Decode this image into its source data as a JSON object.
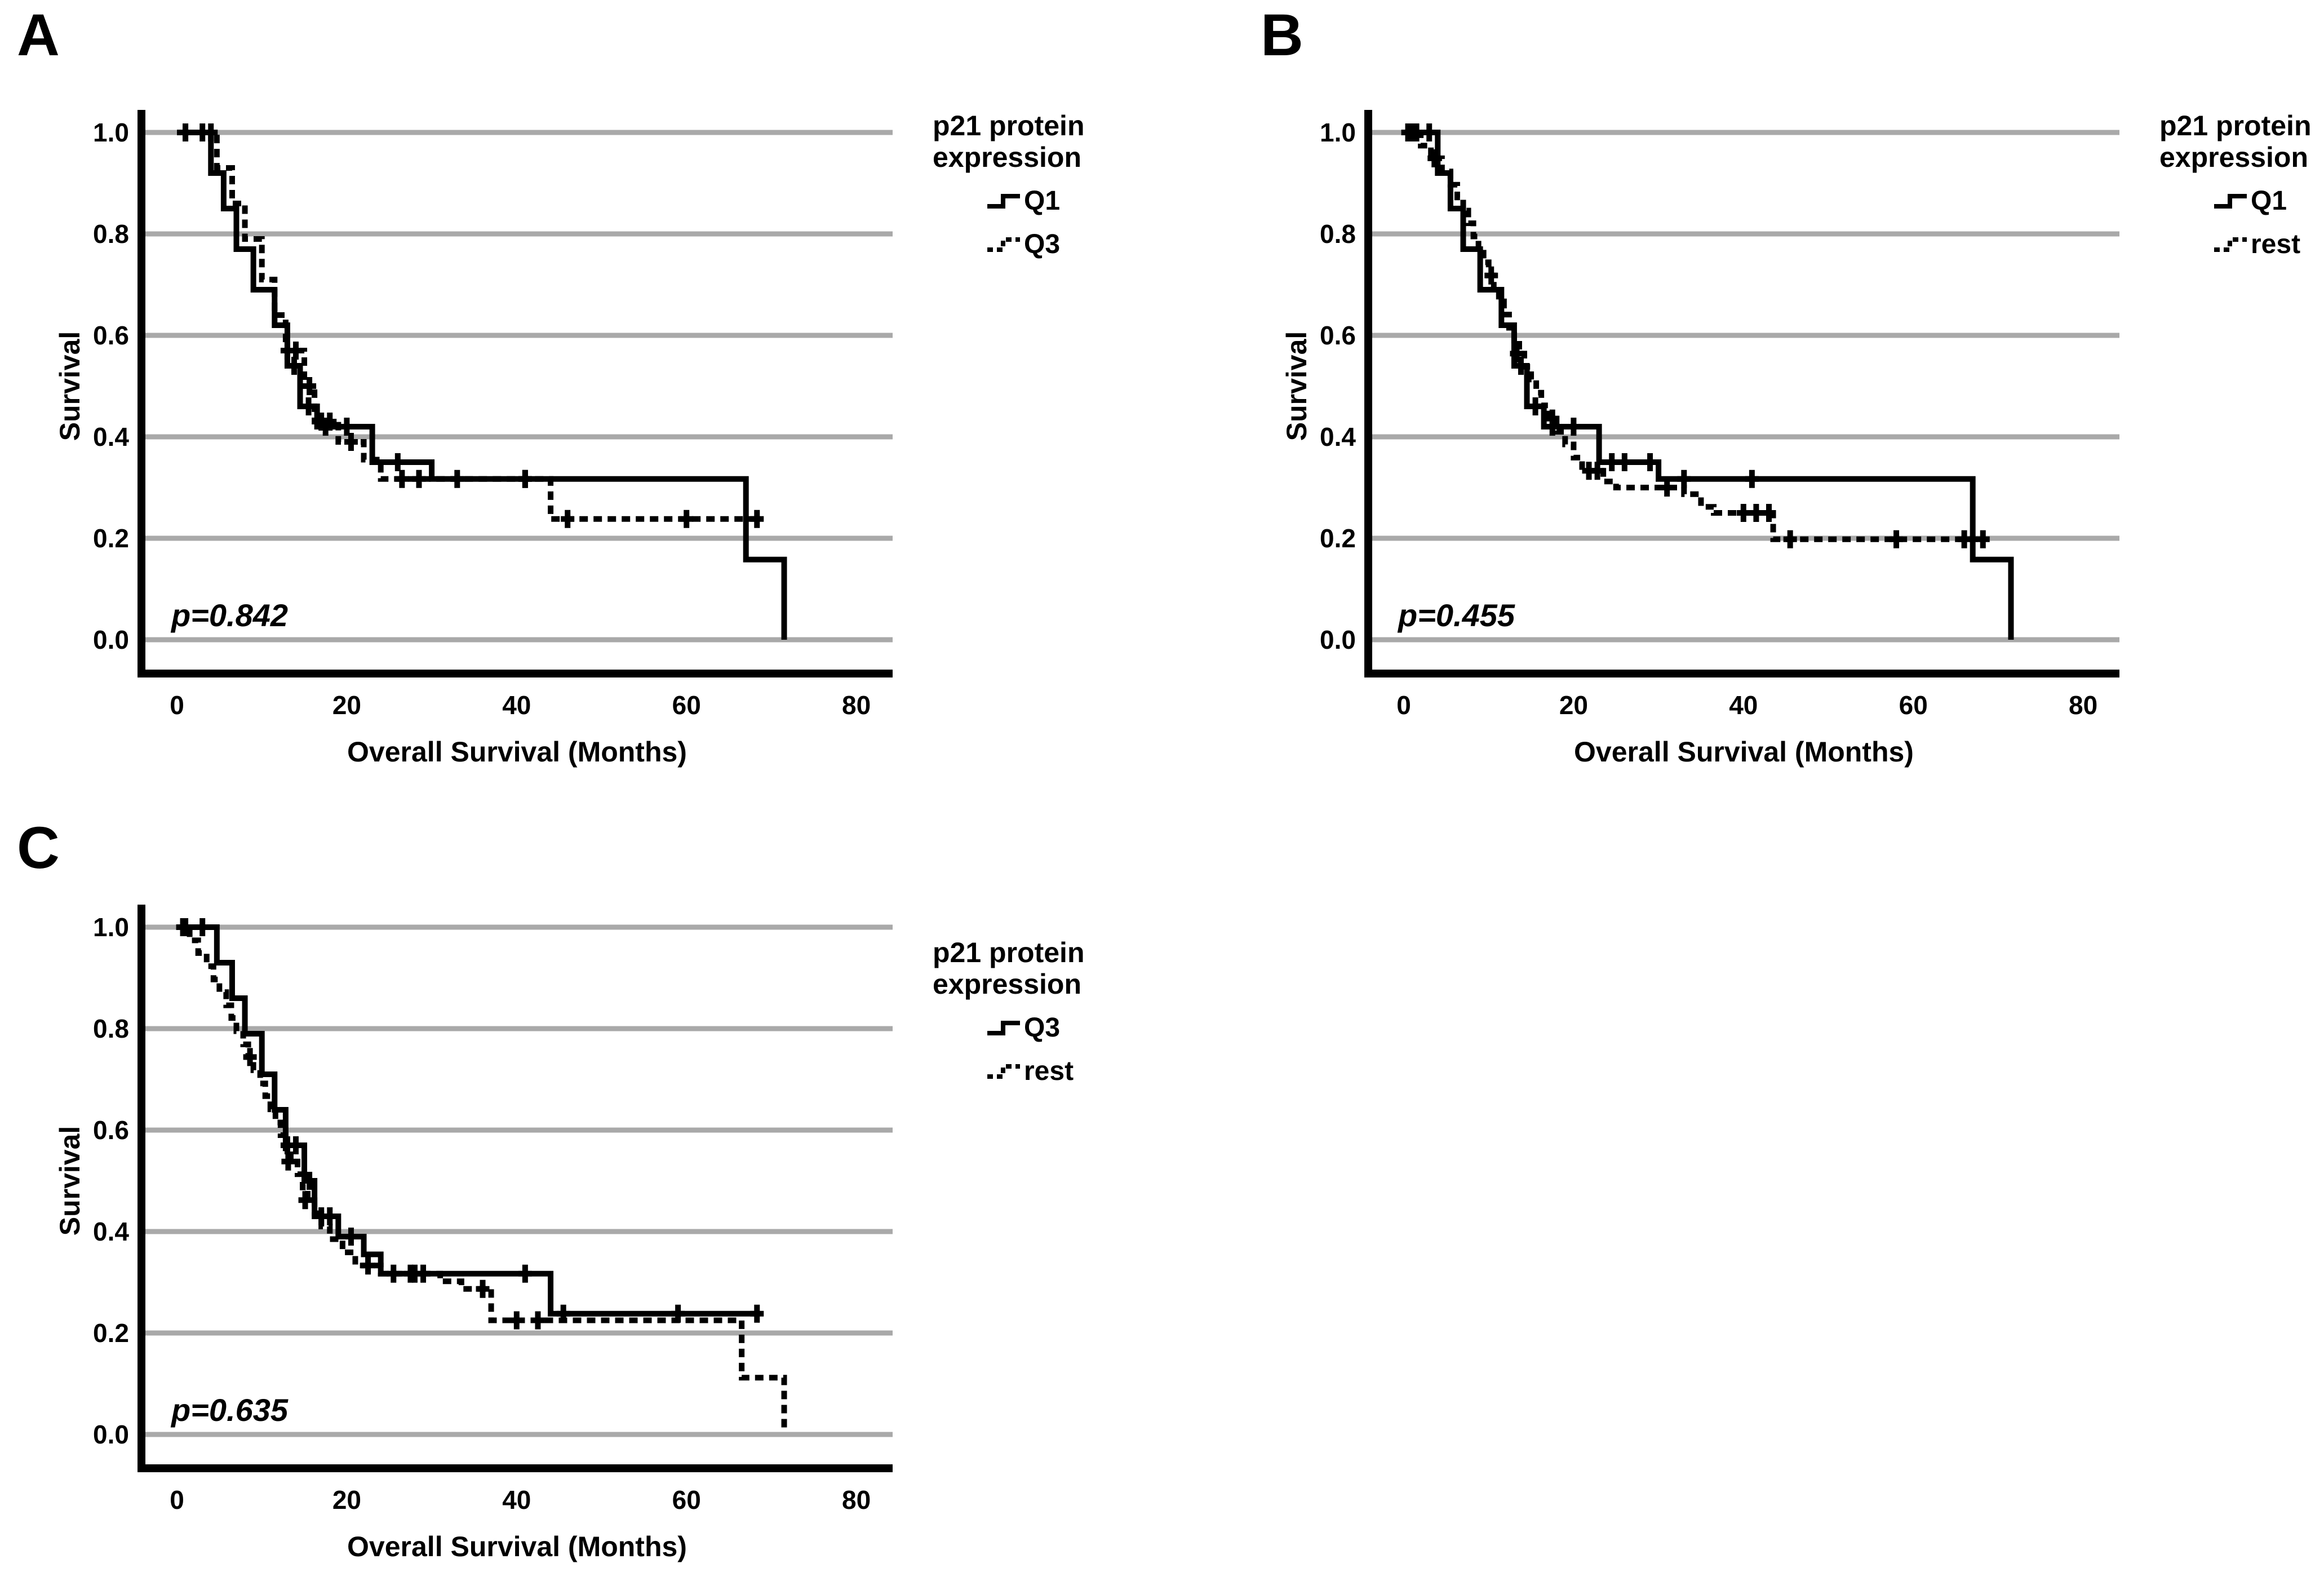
{
  "page": {
    "background": "#ffffff",
    "curve_color": "#000000",
    "grid_color": "#a9a9a9"
  },
  "chart_data": [
    {
      "type": "line",
      "subtype": "kaplan-meier-step",
      "panel_label": "A",
      "legend_title": "p21 protein expression",
      "legend_position": "right",
      "annotation": "p=0.842",
      "xlabel": "Overall Survival (Months)",
      "ylabel": "Survival",
      "xlim": [
        0,
        85
      ],
      "ylim": [
        0.0,
        1.0
      ],
      "xticks": [
        0,
        20,
        40,
        60,
        80
      ],
      "ytick_labels": [
        "1.0",
        "0.8",
        "0.6",
        "0.4",
        "0.2",
        "0.0"
      ],
      "grid": "horizontal-only",
      "series": [
        {
          "name": "Q1",
          "line": "solid",
          "start": [
            0,
            1.0
          ],
          "drops": [
            [
              4,
              0.92
            ],
            [
              5.5,
              0.85
            ],
            [
              7,
              0.77
            ],
            [
              9,
              0.69
            ],
            [
              11.5,
              0.62
            ],
            [
              13,
              0.54
            ],
            [
              14.5,
              0.46
            ],
            [
              16.5,
              0.42
            ],
            [
              23,
              0.35
            ],
            [
              30,
              0.317
            ],
            [
              67,
              0.158
            ],
            [
              71.5,
              0.0
            ]
          ],
          "end_time": 71.5,
          "censors": [
            [
              1,
              1.0
            ],
            [
              3,
              1.0
            ],
            [
              13.8,
              0.54
            ],
            [
              15.5,
              0.46
            ],
            [
              17.5,
              0.42
            ],
            [
              20,
              0.42
            ],
            [
              26,
              0.35
            ],
            [
              28.5,
              0.317
            ],
            [
              33,
              0.317
            ],
            [
              41,
              0.317
            ]
          ]
        },
        {
          "name": "Q3",
          "line": "dashed",
          "start": [
            0,
            1.0
          ],
          "drops": [
            [
              4.7,
              0.93
            ],
            [
              6.5,
              0.86
            ],
            [
              8,
              0.79
            ],
            [
              10,
              0.71
            ],
            [
              11.5,
              0.64
            ],
            [
              12.8,
              0.57
            ],
            [
              15,
              0.5
            ],
            [
              16.2,
              0.43
            ],
            [
              19,
              0.39
            ],
            [
              22,
              0.355
            ],
            [
              24,
              0.317
            ],
            [
              44,
              0.238
            ]
          ],
          "end_time": 68.5,
          "censors": [
            [
              1,
              1.0
            ],
            [
              4,
              1.0
            ],
            [
              13,
              0.57
            ],
            [
              14,
              0.57
            ],
            [
              15.6,
              0.5
            ],
            [
              17,
              0.43
            ],
            [
              18,
              0.43
            ],
            [
              20.5,
              0.39
            ],
            [
              26.5,
              0.317
            ],
            [
              41,
              0.317
            ],
            [
              46,
              0.238
            ],
            [
              60,
              0.238
            ],
            [
              68.3,
              0.238
            ]
          ]
        }
      ]
    },
    {
      "type": "line",
      "subtype": "kaplan-meier-step",
      "panel_label": "B",
      "legend_title": "p21 protein expression",
      "legend_position": "right",
      "annotation": "p=0.455",
      "xlabel": "Overall Survival (Months)",
      "ylabel": "Survival",
      "xlim": [
        0,
        85
      ],
      "ylim": [
        0.0,
        1.0
      ],
      "xticks": [
        0,
        20,
        40,
        60,
        80
      ],
      "ytick_labels": [
        "1.0",
        "0.8",
        "0.6",
        "0.4",
        "0.2",
        "0.0"
      ],
      "grid": "horizontal-only",
      "series": [
        {
          "name": "Q1",
          "line": "solid",
          "start": [
            0,
            1.0
          ],
          "drops": [
            [
              4,
              0.92
            ],
            [
              5.5,
              0.85
            ],
            [
              7,
              0.77
            ],
            [
              9,
              0.69
            ],
            [
              11.5,
              0.62
            ],
            [
              13,
              0.54
            ],
            [
              14.5,
              0.46
            ],
            [
              16.5,
              0.42
            ],
            [
              23,
              0.35
            ],
            [
              30,
              0.317
            ],
            [
              67,
              0.158
            ],
            [
              71.5,
              0.0
            ]
          ],
          "end_time": 71.5,
          "censors": [
            [
              1,
              1.0
            ],
            [
              3,
              1.0
            ],
            [
              13.8,
              0.54
            ],
            [
              15.5,
              0.46
            ],
            [
              17.5,
              0.42
            ],
            [
              20,
              0.42
            ],
            [
              24.5,
              0.35
            ],
            [
              26,
              0.35
            ],
            [
              29,
              0.35
            ],
            [
              33,
              0.317
            ],
            [
              41,
              0.317
            ]
          ]
        },
        {
          "name": "rest",
          "line": "dashed",
          "start": [
            0,
            1.0
          ],
          "drops": [
            [
              2,
              0.974
            ],
            [
              3.2,
              0.949
            ],
            [
              4.5,
              0.923
            ],
            [
              5.5,
              0.897
            ],
            [
              6.3,
              0.872
            ],
            [
              7,
              0.846
            ],
            [
              7.6,
              0.821
            ],
            [
              8.2,
              0.795
            ],
            [
              8.8,
              0.769
            ],
            [
              9.4,
              0.744
            ],
            [
              10,
              0.718
            ],
            [
              10.6,
              0.692
            ],
            [
              11.2,
              0.667
            ],
            [
              11.8,
              0.641
            ],
            [
              12.4,
              0.615
            ],
            [
              13,
              0.59
            ],
            [
              13.6,
              0.564
            ],
            [
              14.2,
              0.538
            ],
            [
              15,
              0.513
            ],
            [
              15.6,
              0.487
            ],
            [
              16.2,
              0.462
            ],
            [
              17,
              0.436
            ],
            [
              18,
              0.41
            ],
            [
              19,
              0.385
            ],
            [
              20,
              0.359
            ],
            [
              21,
              0.333
            ],
            [
              23.5,
              0.312
            ],
            [
              25,
              0.3
            ],
            [
              33,
              0.287
            ],
            [
              35,
              0.262
            ],
            [
              36.5,
              0.25
            ],
            [
              43.5,
              0.198
            ]
          ],
          "end_time": 68.5,
          "censors": [
            [
              0.5,
              1.0
            ],
            [
              1.5,
              1.0
            ],
            [
              3.6,
              0.949
            ],
            [
              10.3,
              0.718
            ],
            [
              13.3,
              0.564
            ],
            [
              17.5,
              0.436
            ],
            [
              21.8,
              0.333
            ],
            [
              22.8,
              0.333
            ],
            [
              31,
              0.3
            ],
            [
              40,
              0.25
            ],
            [
              41.5,
              0.25
            ],
            [
              43,
              0.25
            ],
            [
              45.5,
              0.198
            ],
            [
              58,
              0.198
            ],
            [
              66,
              0.198
            ],
            [
              68.2,
              0.198
            ]
          ]
        }
      ]
    },
    {
      "type": "line",
      "subtype": "kaplan-meier-step",
      "panel_label": "C",
      "legend_title": "p21 protein expression",
      "legend_position": "right",
      "annotation": "p=0.635",
      "xlabel": "Overall Survival (Months)",
      "ylabel": "Survival",
      "xlim": [
        0,
        85
      ],
      "ylim": [
        0.0,
        1.0
      ],
      "xticks": [
        0,
        20,
        40,
        60,
        80
      ],
      "ytick_labels": [
        "1.0",
        "0.8",
        "0.6",
        "0.4",
        "0.2",
        "0.0"
      ],
      "grid": "horizontal-only",
      "series": [
        {
          "name": "Q3",
          "line": "solid",
          "start": [
            0,
            1.0
          ],
          "drops": [
            [
              4.7,
              0.93
            ],
            [
              6.5,
              0.86
            ],
            [
              8,
              0.79
            ],
            [
              10,
              0.71
            ],
            [
              11.5,
              0.64
            ],
            [
              12.8,
              0.57
            ],
            [
              15,
              0.5
            ],
            [
              16.2,
              0.43
            ],
            [
              19,
              0.39
            ],
            [
              22,
              0.355
            ],
            [
              24,
              0.317
            ],
            [
              44,
              0.238
            ]
          ],
          "end_time": 68.5,
          "censors": [
            [
              1,
              1.0
            ],
            [
              3,
              1.0
            ],
            [
              13,
              0.57
            ],
            [
              14,
              0.57
            ],
            [
              15.6,
              0.5
            ],
            [
              17,
              0.43
            ],
            [
              18,
              0.43
            ],
            [
              20.5,
              0.39
            ],
            [
              25.5,
              0.317
            ],
            [
              27.5,
              0.317
            ],
            [
              29,
              0.317
            ],
            [
              41,
              0.317
            ],
            [
              45.5,
              0.238
            ],
            [
              59,
              0.238
            ],
            [
              68.3,
              0.238
            ]
          ]
        },
        {
          "name": "rest",
          "line": "dashed",
          "start": [
            0,
            1.0
          ],
          "drops": [
            [
              1.5,
              0.974
            ],
            [
              2.5,
              0.949
            ],
            [
              3.5,
              0.923
            ],
            [
              4.3,
              0.897
            ],
            [
              5,
              0.872
            ],
            [
              5.8,
              0.846
            ],
            [
              6.4,
              0.821
            ],
            [
              7,
              0.795
            ],
            [
              7.8,
              0.769
            ],
            [
              8.4,
              0.744
            ],
            [
              9,
              0.718
            ],
            [
              9.8,
              0.692
            ],
            [
              10.4,
              0.667
            ],
            [
              11,
              0.641
            ],
            [
              11.6,
              0.615
            ],
            [
              12.2,
              0.59
            ],
            [
              12.8,
              0.564
            ],
            [
              13.4,
              0.538
            ],
            [
              14.2,
              0.513
            ],
            [
              14.8,
              0.487
            ],
            [
              15.4,
              0.462
            ],
            [
              16.2,
              0.436
            ],
            [
              17,
              0.41
            ],
            [
              18,
              0.385
            ],
            [
              19.5,
              0.359
            ],
            [
              21,
              0.333
            ],
            [
              24,
              0.317
            ],
            [
              31,
              0.302
            ],
            [
              33.5,
              0.287
            ],
            [
              37,
              0.225
            ],
            [
              66.5,
              0.112
            ],
            [
              71.5,
              0.005
            ]
          ],
          "end_time": 71.5,
          "censors": [
            [
              0.7,
              1.0
            ],
            [
              8.6,
              0.744
            ],
            [
              13.1,
              0.538
            ],
            [
              15.1,
              0.462
            ],
            [
              22.5,
              0.333
            ],
            [
              28,
              0.317
            ],
            [
              36,
              0.287
            ],
            [
              40,
              0.225
            ],
            [
              42.5,
              0.225
            ]
          ]
        }
      ]
    }
  ]
}
